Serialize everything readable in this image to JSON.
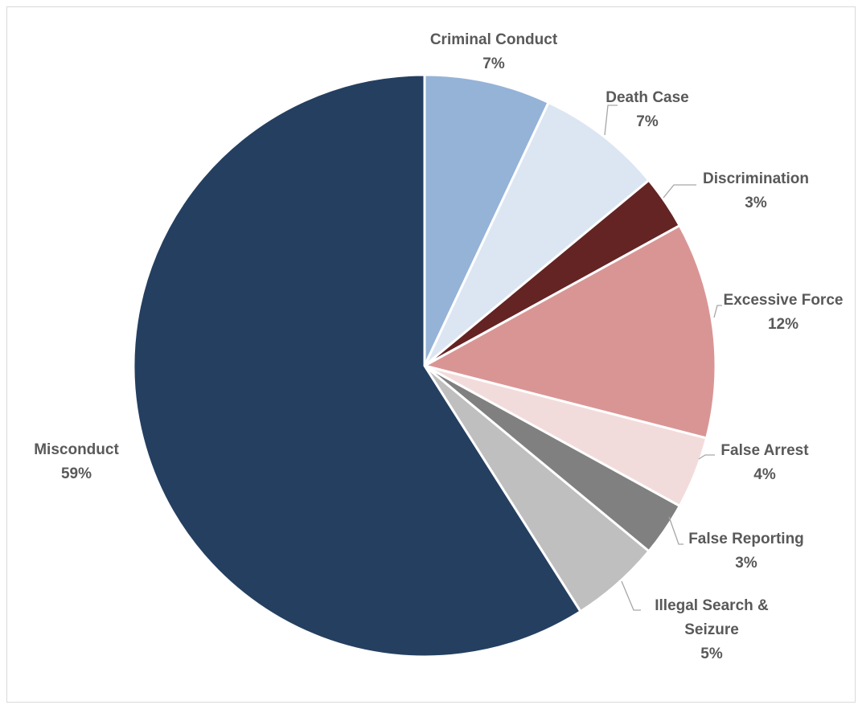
{
  "chart_data": {
    "type": "pie",
    "title": "",
    "slices": [
      {
        "label": "Criminal Conduct",
        "value": 7,
        "pct_label": "7%",
        "color": "#95b3d7"
      },
      {
        "label": "Death Case",
        "value": 7,
        "pct_label": "7%",
        "color": "#dce6f2"
      },
      {
        "label": "Discrimination",
        "value": 3,
        "pct_label": "3%",
        "color": "#632423"
      },
      {
        "label": "Excessive Force",
        "value": 12,
        "pct_label": "12%",
        "color": "#d99594"
      },
      {
        "label": "False Arrest",
        "value": 4,
        "pct_label": "4%",
        "color": "#f2dcdb"
      },
      {
        "label": "False Reporting",
        "value": 3,
        "pct_label": "3%",
        "color": "#808080"
      },
      {
        "label": "Illegal Search & Seizure",
        "value": 5,
        "pct_label": "5%",
        "color": "#bfbfbf"
      },
      {
        "label": "Misconduct",
        "value": 59,
        "pct_label": "59%",
        "color": "#243f60"
      }
    ],
    "legend": "none",
    "data_labels": "outside"
  }
}
